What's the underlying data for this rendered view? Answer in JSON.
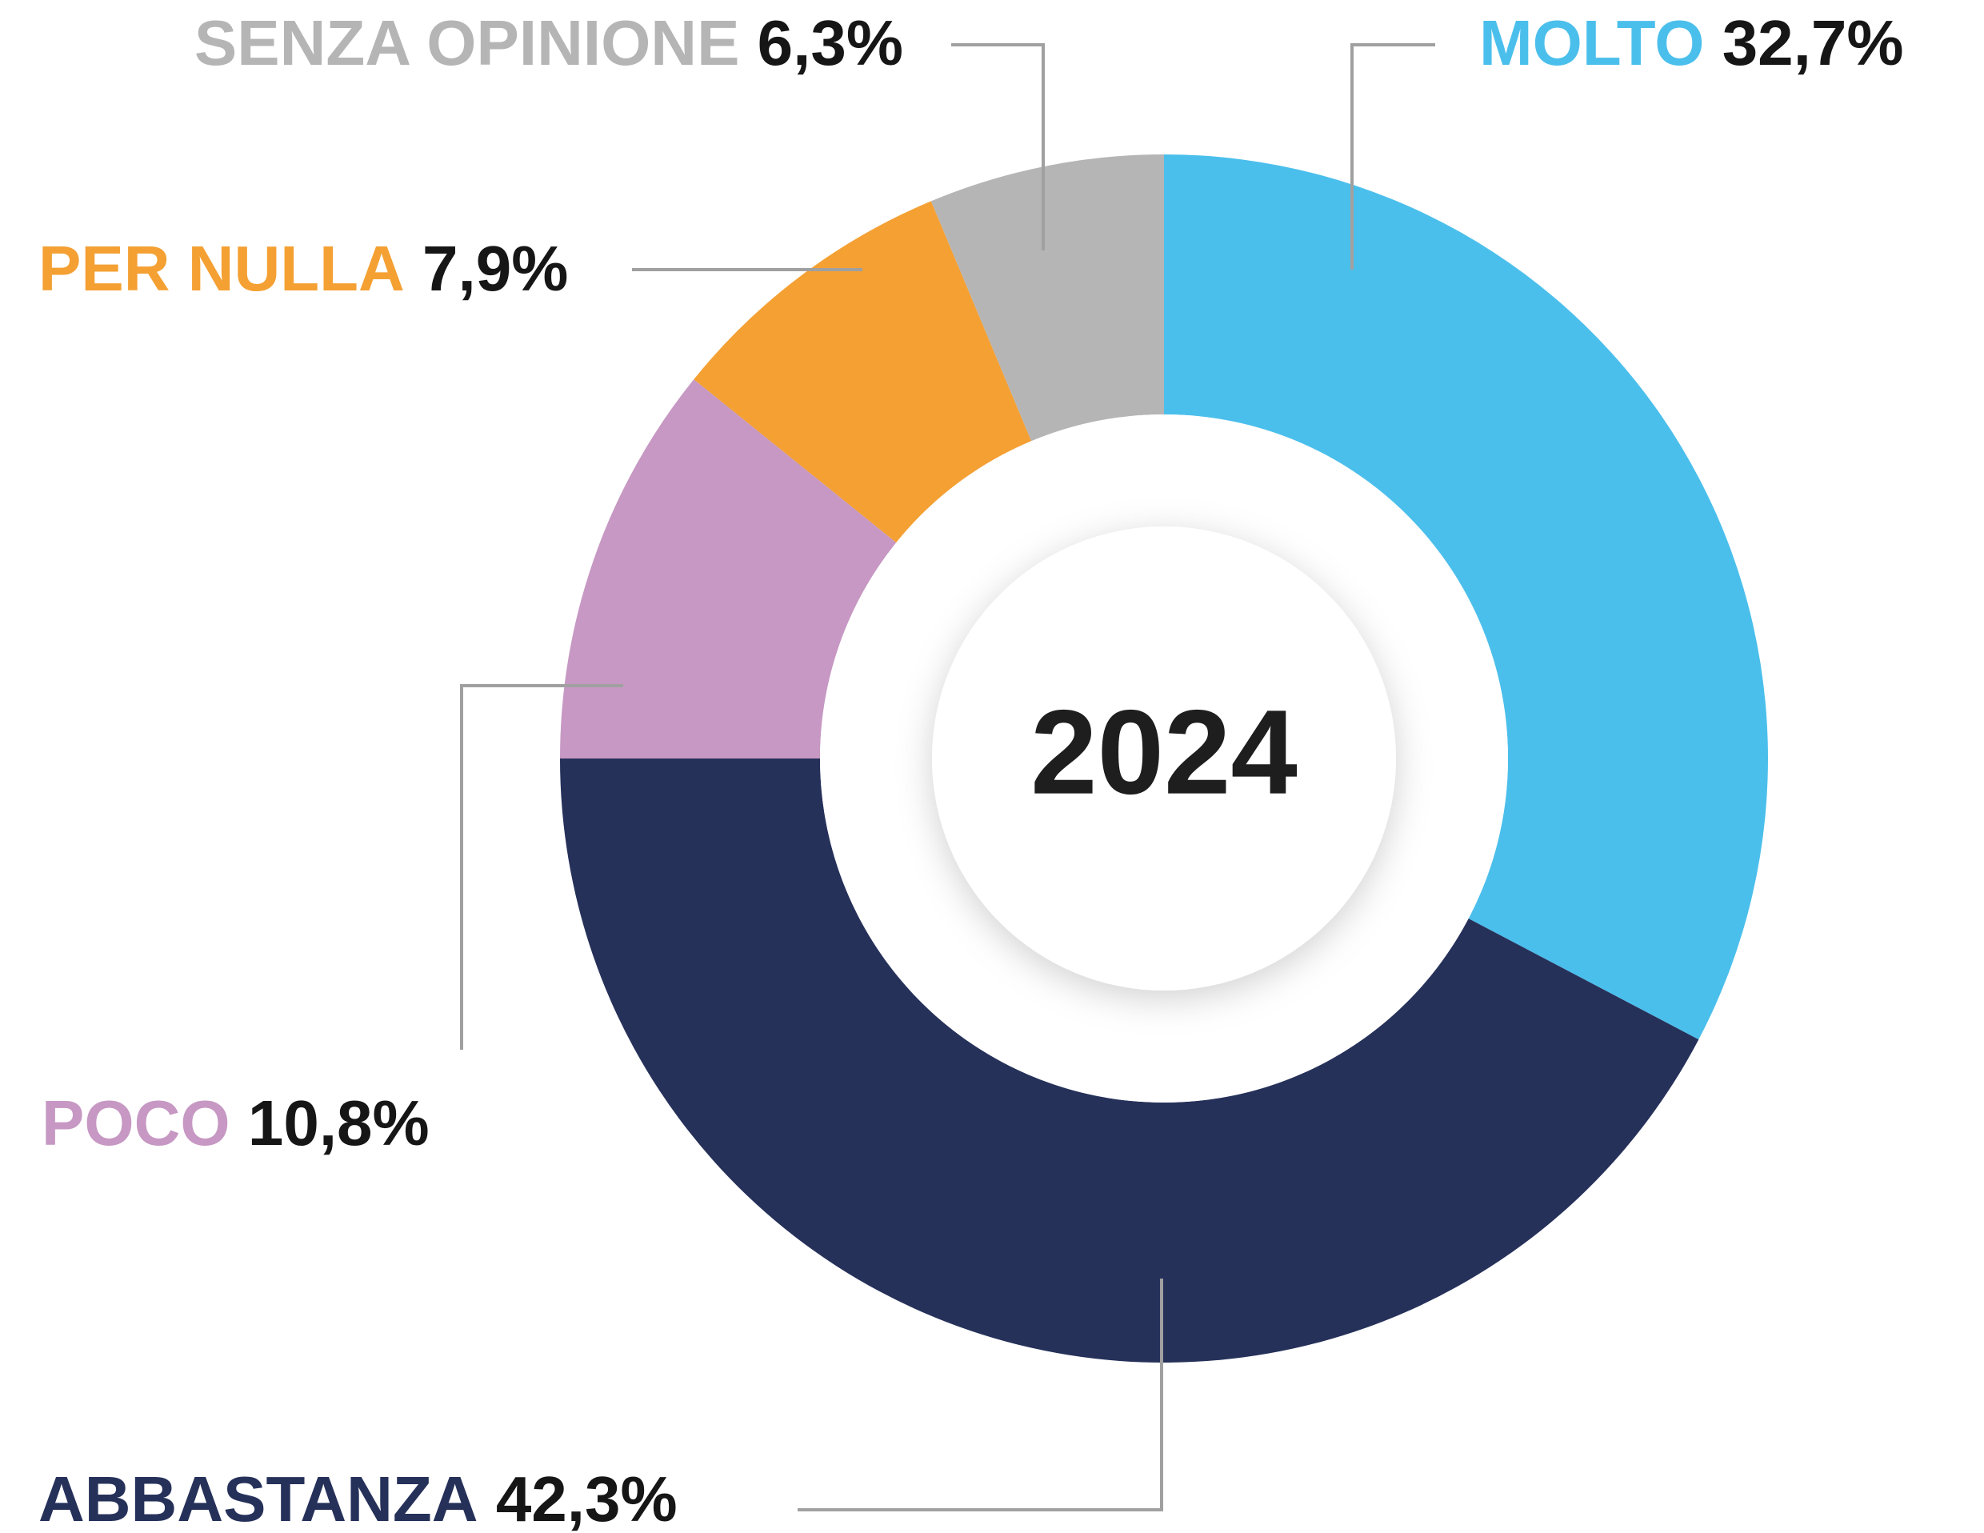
{
  "chart_data": {
    "type": "donut",
    "center_label": "2024",
    "categories": [
      "MOLTO",
      "ABBASTANZA",
      "POCO",
      "PER NULLA",
      "SENZA OPINIONE"
    ],
    "values": [
      32.7,
      42.3,
      10.8,
      7.9,
      6.3
    ],
    "value_labels": [
      "32,7%",
      "42,3%",
      "10,8%",
      "7,9%",
      "6,3%"
    ],
    "colors": [
      "#4bbfec",
      "#26315a",
      "#c698c3",
      "#f4a033",
      "#b5b5b5"
    ]
  }
}
